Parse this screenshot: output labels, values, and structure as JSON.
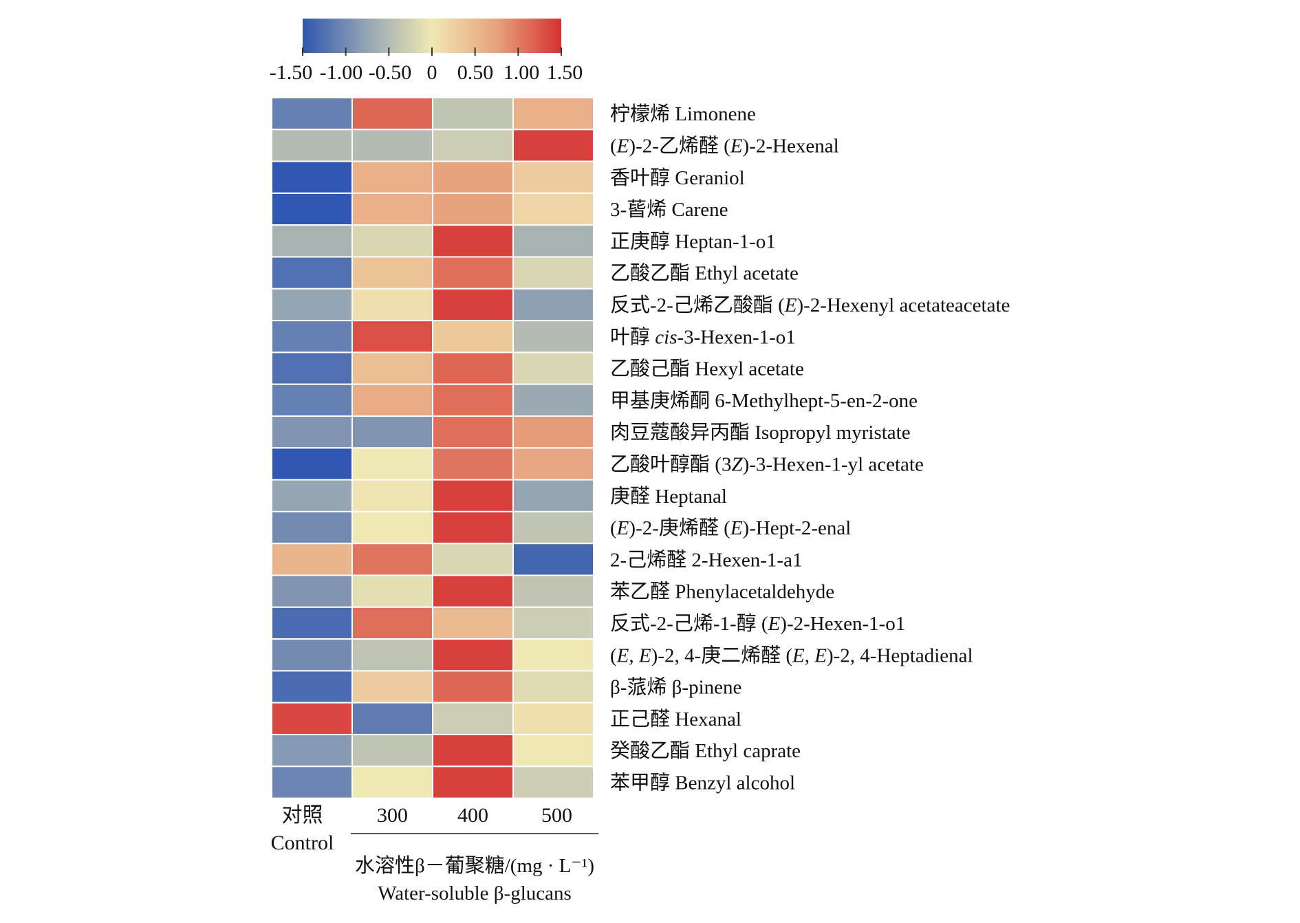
{
  "chart_data": {
    "type": "heatmap",
    "colorscale": {
      "min": -1.5,
      "max": 1.5,
      "stops": [
        "#2f56b0",
        "#95a5b3",
        "#f0e8b3",
        "#e7a27e",
        "#d63231"
      ],
      "tick_labels": [
        "-1.50",
        "-1.00",
        "-0.50",
        "0",
        "0.50",
        "1.00",
        "1.50"
      ]
    },
    "columns": [
      {
        "line1": "对照",
        "line2": "Control"
      },
      {
        "line1": "300"
      },
      {
        "line1": "400"
      },
      {
        "line1": "500"
      }
    ],
    "x_axis_label": {
      "line1": "水溶性β－葡聚糖/(mg · L⁻¹)",
      "line2": "Water-soluble β-glucans"
    },
    "rows": [
      {
        "zh": "柠檬烯",
        "en": "Limonene",
        "values": [
          -1.1,
          1.15,
          -0.4,
          0.6
        ]
      },
      {
        "zh": "(E)-2-乙烯醛",
        "en": "(E)-2-Hexenal",
        "values": [
          -0.5,
          -0.5,
          -0.3,
          1.4
        ]
      },
      {
        "zh": "香叶醇",
        "en": "Geraniol",
        "values": [
          -1.5,
          0.6,
          0.75,
          0.3
        ]
      },
      {
        "zh": "3-蒈烯",
        "en": "Carene",
        "values": [
          -1.5,
          0.6,
          0.75,
          0.2
        ]
      },
      {
        "zh": "正庚醇",
        "en": "Heptan-1-o1",
        "values": [
          -0.6,
          -0.2,
          1.4,
          -0.6
        ]
      },
      {
        "zh": "乙酸乙酯",
        "en": "Ethyl acetate",
        "values": [
          -1.25,
          0.4,
          1.1,
          -0.2
        ]
      },
      {
        "zh": "反式-2-己烯乙酸酯",
        "en": "(E)-2-Hexenyl acetateacetate",
        "values": [
          -0.75,
          0.1,
          1.4,
          -0.8
        ]
      },
      {
        "zh": "叶醇",
        "en": "cis-3-Hexen-1-o1",
        "values": [
          -1.1,
          1.3,
          0.35,
          -0.5
        ]
      },
      {
        "zh": "乙酸己酯",
        "en": "Hexyl acetate",
        "values": [
          -1.25,
          0.45,
          1.15,
          -0.2
        ]
      },
      {
        "zh": "甲基庚烯酮",
        "en": "6-Methylhept-5-en-2-one",
        "values": [
          -1.1,
          0.65,
          1.1,
          -0.7
        ]
      },
      {
        "zh": "肉豆蔻酸异丙酯",
        "en": "Isopropyl myristate",
        "values": [
          -0.9,
          -0.9,
          1.1,
          0.8
        ]
      },
      {
        "zh": "乙酸叶醇酯",
        "en": "(3Z)-3-Hexen-1-yl acetate",
        "values": [
          -1.5,
          0.0,
          1.05,
          0.7
        ]
      },
      {
        "zh": "庚醛",
        "en": "Heptanal",
        "values": [
          -0.75,
          0.05,
          1.4,
          -0.75
        ]
      },
      {
        "zh": "(E)-2-庚烯醛",
        "en": "(E)-Hept-2-enal",
        "values": [
          -1.0,
          0.0,
          1.4,
          -0.4
        ]
      },
      {
        "zh": "2-己烯醛",
        "en": "2-Hexen-1-a1",
        "values": [
          0.55,
          1.05,
          -0.2,
          -1.35
        ]
      },
      {
        "zh": "苯乙醛",
        "en": "Phenylacetaldehyde",
        "values": [
          -0.9,
          -0.1,
          1.4,
          -0.4
        ]
      },
      {
        "zh": "反式-2-己烯-1-醇",
        "en": "(E)-2-Hexen-1-o1",
        "values": [
          -1.3,
          1.1,
          0.5,
          -0.3
        ]
      },
      {
        "zh": "(E, E)-2, 4-庚二烯醛",
        "en": "(E, E)-2, 4-Heptadienal",
        "values": [
          -1.0,
          -0.4,
          1.4,
          0.0
        ]
      },
      {
        "zh": "β-蒎烯",
        "en": "β-pinene",
        "values": [
          -1.3,
          0.3,
          1.15,
          -0.15
        ]
      },
      {
        "zh": "正己醛",
        "en": "Hexanal",
        "values": [
          1.35,
          -1.15,
          -0.3,
          0.1
        ]
      },
      {
        "zh": "癸酸乙酯",
        "en": "Ethyl caprate",
        "values": [
          -0.85,
          -0.4,
          1.4,
          0.0
        ]
      },
      {
        "zh": "苯甲醇",
        "en": "Benzyl alcohol",
        "values": [
          -1.05,
          0.0,
          1.4,
          -0.3
        ]
      }
    ]
  }
}
